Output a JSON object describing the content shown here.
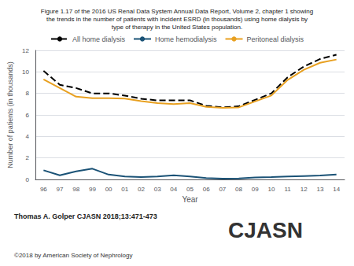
{
  "chart_data": {
    "type": "line",
    "title": "Figure 1.17 of the 2016 US Renal Data System Annual Data Report, Volume 2, chapter 1 showing\nthe trends in the number of patients with incident ESRD (in thousands) using home dialysis by\ntype of therapy in the United States population.",
    "x_label": "Year",
    "y_label": "Number of patients (in thousands)",
    "categories": [
      "96",
      "97",
      "98",
      "99",
      "00",
      "01",
      "02",
      "03",
      "04",
      "05",
      "06",
      "07",
      "08",
      "09",
      "10",
      "11",
      "12",
      "13",
      "14"
    ],
    "series": [
      {
        "name": "All home dialysis",
        "color": "#000000",
        "line_style": "dashed",
        "values": [
          10.1,
          8.8,
          8.5,
          8.0,
          8.0,
          7.8,
          7.5,
          7.35,
          7.35,
          7.35,
          6.85,
          6.7,
          6.8,
          7.4,
          8.0,
          9.5,
          10.5,
          11.2,
          11.6
        ]
      },
      {
        "name": "Home hemodialysis",
        "color": "#1a5276",
        "line_style": "solid",
        "values": [
          0.85,
          0.38,
          0.75,
          1.0,
          0.45,
          0.28,
          0.22,
          0.28,
          0.38,
          0.28,
          0.12,
          0.08,
          0.1,
          0.18,
          0.22,
          0.28,
          0.32,
          0.36,
          0.45
        ]
      },
      {
        "name": "Peritoneal dialysis",
        "color": "#e8a020",
        "line_style": "solid",
        "values": [
          9.3,
          8.5,
          7.7,
          7.55,
          7.55,
          7.52,
          7.28,
          7.1,
          7.0,
          7.1,
          6.75,
          6.65,
          6.7,
          7.25,
          7.8,
          9.25,
          10.2,
          10.85,
          11.15
        ]
      }
    ],
    "ylim": [
      0,
      12
    ],
    "yticks": [
      0,
      2,
      4,
      6,
      8,
      10,
      12
    ],
    "grid": true,
    "legend": "top",
    "annotations": [
      "Thomas A. Golper CJASN 2018;13:471-473",
      "©2018 by American Society of Nephrology",
      "CJASN"
    ]
  }
}
